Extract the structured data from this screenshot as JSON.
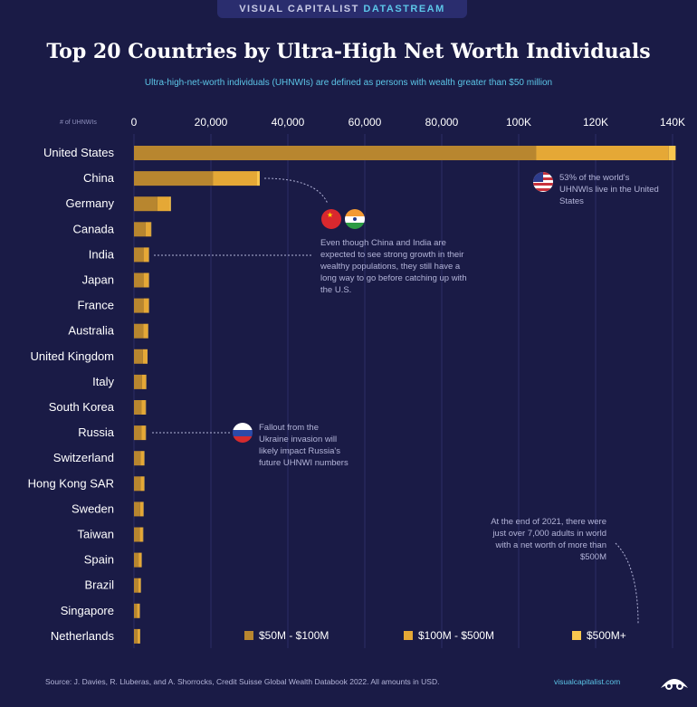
{
  "banner": {
    "part1": "VISUAL CAPITALIST",
    "part2": "DATASTREAM"
  },
  "title": "Top 20 Countries by Ultra-High Net Worth Individuals",
  "subtitle": "Ultra-high-net-worth individuals (UHNWIs) are defined as persons with wealth greater than $50 million",
  "annotations": {
    "us": "53% of the world's UHNWIs live in the United States",
    "china_india": "Even though China and India are expected to see strong growth in their wealthy populations, they still have a long way to go before catching up with the U.S.",
    "russia": "Fallout from the Ukraine invasion will likely impact Russia's future UHNWI numbers",
    "note": "At the end of 2021, there were just over 7,000 adults in world with a net worth of more than $500M"
  },
  "source": "Source: J. Davies, R. Lluberas, and A. Shorrocks, Credit Suisse Global Wealth Databook 2022. All amounts in USD.",
  "site": "visualcapitalist.com",
  "colors": {
    "background": "#1a1b46",
    "seg1": "#b8862f",
    "seg2": "#e5a836",
    "seg3": "#f9c74f"
  },
  "chart_data": {
    "type": "bar",
    "orientation": "horizontal",
    "stacked": true,
    "axis_label": "# of UHNWIs",
    "xlim": [
      0,
      140000
    ],
    "ticks": [
      0,
      20000,
      40000,
      60000,
      80000,
      100000,
      120000,
      140000
    ],
    "tick_labels": [
      "0",
      "20,000",
      "40,000",
      "60,000",
      "80,000",
      "100K",
      "120K",
      "140K"
    ],
    "categories": [
      "United States",
      "China",
      "Germany",
      "Canada",
      "India",
      "Japan",
      "France",
      "Australia",
      "United Kingdom",
      "Italy",
      "South Korea",
      "Russia",
      "Switzerland",
      "Hong Kong SAR",
      "Sweden",
      "Taiwan",
      "Spain",
      "Brazil",
      "Singapore",
      "Netherlands"
    ],
    "series": [
      {
        "name": "$50M - $100M",
        "values": [
          104500,
          20500,
          6100,
          3000,
          2500,
          2500,
          2500,
          2400,
          2300,
          2100,
          2000,
          2000,
          1700,
          1700,
          1600,
          1500,
          1200,
          1100,
          800,
          900
        ]
      },
      {
        "name": "$100M - $500M",
        "values": [
          34500,
          11500,
          3200,
          1400,
          1300,
          1300,
          1300,
          1200,
          1100,
          1000,
          1000,
          1000,
          900,
          900,
          800,
          800,
          700,
          600,
          600,
          600
        ]
      },
      {
        "name": "$500M+",
        "values": [
          1800,
          700,
          300,
          100,
          100,
          100,
          100,
          100,
          100,
          100,
          100,
          100,
          100,
          100,
          100,
          100,
          50,
          50,
          50,
          50
        ]
      }
    ],
    "legend_position": "bottom-right"
  }
}
